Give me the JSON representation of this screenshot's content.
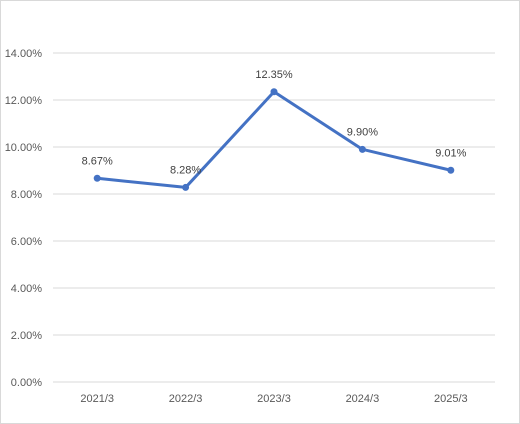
{
  "chart_data": {
    "type": "line",
    "categories": [
      "2021/3",
      "2022/3",
      "2023/3",
      "2024/3",
      "2025/3"
    ],
    "series": [
      {
        "values": [
          8.67,
          8.28,
          12.35,
          9.9,
          9.01
        ],
        "labels": [
          "8.67%",
          "8.28%",
          "12.35%",
          "9.90%",
          "9.01%"
        ]
      }
    ],
    "ylim": [
      0,
      14
    ],
    "yticks": [
      "0.00%",
      "2.00%",
      "4.00%",
      "6.00%",
      "8.00%",
      "10.00%",
      "12.00%",
      "14.00%"
    ],
    "grid": true,
    "legend": "none",
    "line_color": "#4472C4",
    "grid_color": "#d9d9d9"
  }
}
